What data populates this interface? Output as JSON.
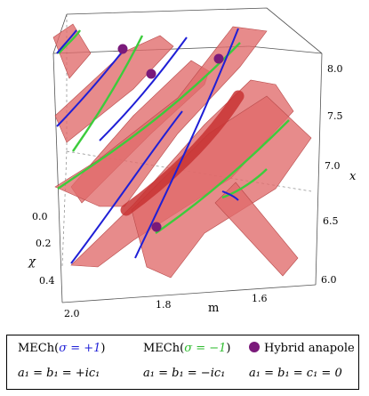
{
  "axes": {
    "x_label": "x",
    "m_label": "m",
    "chi_label": "χ",
    "x_ticks": [
      "8.0",
      "7.5",
      "7.0",
      "6.5",
      "6.0"
    ],
    "m_ticks": [
      "2.0",
      "1.8",
      "1.6"
    ],
    "chi_ticks": [
      "0.0",
      "0.2",
      "0.4"
    ]
  },
  "legend": {
    "row1": {
      "blue_prefix": "MECh(",
      "blue_sigma": "σ = +1",
      "blue_suffix": ")",
      "green_prefix": "MECh(",
      "green_sigma": "σ = −1",
      "green_suffix": ")",
      "anapole": "Hybrid anapole"
    },
    "row2": {
      "blue_cond": "a₁ = b₁ = +ic₁",
      "green_cond": "a₁ = b₁ = −ic₁",
      "anapole_cond": "a₁ = b₁ = c₁ = 0"
    }
  },
  "colors": {
    "surface": "#e06a6a",
    "blue_curve": "#1f1fd6",
    "green_curve": "#3ccc3c",
    "anapole_point": "#7a1a7a",
    "tube": "#c83232"
  }
}
